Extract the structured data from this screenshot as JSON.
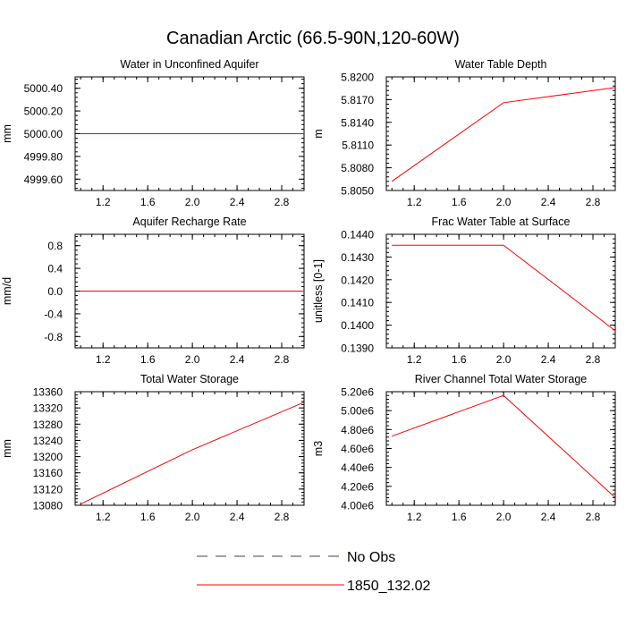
{
  "title": "Canadian Arctic (66.5-90N,120-60W)",
  "chart_data": [
    {
      "type": "line",
      "title": "Water in Unconfined Aquifer",
      "ylabel": "mm",
      "xlim": [
        0.95,
        3.0
      ],
      "ylim": [
        4999.5,
        5000.5
      ],
      "xticks": [
        "1.2",
        "1.6",
        "2.0",
        "2.4",
        "2.8"
      ],
      "xtick_values": [
        1.2,
        1.6,
        2.0,
        2.4,
        2.8
      ],
      "yticks": [
        "5000.40",
        "5000.20",
        "5000.00",
        "4999.80",
        "4999.60"
      ],
      "ytick_values": [
        5000.4,
        5000.2,
        5000.0,
        4999.8,
        4999.6
      ],
      "series": [
        {
          "name": "1850_132.02",
          "color": "#ff0000",
          "x": [
            1.0,
            2.0,
            3.0
          ],
          "y": [
            5000.0,
            5000.0,
            5000.0
          ]
        }
      ]
    },
    {
      "type": "line",
      "title": "Water Table Depth",
      "ylabel": "m",
      "xlim": [
        0.95,
        3.0
      ],
      "ylim": [
        5.805,
        5.82
      ],
      "xticks": [
        "1.2",
        "1.6",
        "2.0",
        "2.4",
        "2.8"
      ],
      "xtick_values": [
        1.2,
        1.6,
        2.0,
        2.4,
        2.8
      ],
      "yticks": [
        "5.8200",
        "5.8170",
        "5.8140",
        "5.8110",
        "5.8080",
        "5.8050"
      ],
      "ytick_values": [
        5.82,
        5.817,
        5.814,
        5.811,
        5.808,
        5.805
      ],
      "series": [
        {
          "name": "1850_132.02",
          "color": "#ff0000",
          "x": [
            1.0,
            2.0,
            3.0
          ],
          "y": [
            5.8062,
            5.8166,
            5.8186
          ]
        }
      ]
    },
    {
      "type": "line",
      "title": "Aquifer Recharge Rate",
      "ylabel": "mm/d",
      "xlim": [
        0.95,
        3.0
      ],
      "ylim": [
        -1.0,
        1.0
      ],
      "xticks": [
        "1.2",
        "1.6",
        "2.0",
        "2.4",
        "2.8"
      ],
      "xtick_values": [
        1.2,
        1.6,
        2.0,
        2.4,
        2.8
      ],
      "yticks": [
        "0.8",
        "0.4",
        "0.0",
        "-0.4",
        "-0.8"
      ],
      "ytick_values": [
        0.8,
        0.4,
        0.0,
        -0.4,
        -0.8
      ],
      "series": [
        {
          "name": "1850_132.02",
          "color": "#ff0000",
          "x": [
            1.0,
            2.0,
            3.0
          ],
          "y": [
            0.0,
            0.0,
            0.0
          ]
        }
      ]
    },
    {
      "type": "line",
      "title": "Frac Water Table at Surface",
      "ylabel": "unitless [0-1]",
      "xlim": [
        0.95,
        3.0
      ],
      "ylim": [
        0.139,
        0.144
      ],
      "xticks": [
        "1.2",
        "1.6",
        "2.0",
        "2.4",
        "2.8"
      ],
      "xtick_values": [
        1.2,
        1.6,
        2.0,
        2.4,
        2.8
      ],
      "yticks": [
        "0.1440",
        "0.1430",
        "0.1420",
        "0.1410",
        "0.1400",
        "0.1390"
      ],
      "ytick_values": [
        0.144,
        0.143,
        0.142,
        0.141,
        0.14,
        0.139
      ],
      "series": [
        {
          "name": "1850_132.02",
          "color": "#ff0000",
          "x": [
            1.0,
            2.0,
            3.0
          ],
          "y": [
            0.14352,
            0.14352,
            0.13975
          ]
        }
      ]
    },
    {
      "type": "line",
      "title": "Total Water Storage",
      "ylabel": "mm",
      "xlim": [
        0.95,
        3.0
      ],
      "ylim": [
        13080,
        13360
      ],
      "xticks": [
        "1.2",
        "1.6",
        "2.0",
        "2.4",
        "2.8"
      ],
      "xtick_values": [
        1.2,
        1.6,
        2.0,
        2.4,
        2.8
      ],
      "yticks": [
        "13360",
        "13320",
        "13280",
        "13240",
        "13200",
        "13160",
        "13120",
        "13080"
      ],
      "ytick_values": [
        13360,
        13320,
        13280,
        13240,
        13200,
        13160,
        13120,
        13080
      ],
      "series": [
        {
          "name": "1850_132.02",
          "color": "#ff0000",
          "x": [
            1.0,
            2.0,
            3.0
          ],
          "y": [
            13083,
            13217,
            13334
          ]
        }
      ]
    },
    {
      "type": "line",
      "title": "River Channel Total Water Storage",
      "ylabel": "m3",
      "xlim": [
        0.95,
        3.0
      ],
      "ylim": [
        4000000,
        5200000
      ],
      "xticks": [
        "1.2",
        "1.6",
        "2.0",
        "2.4",
        "2.8"
      ],
      "xtick_values": [
        1.2,
        1.6,
        2.0,
        2.4,
        2.8
      ],
      "yticks": [
        "5.20e6",
        "5.00e6",
        "4.80e6",
        "4.60e6",
        "4.40e6",
        "4.20e6",
        "4.00e6"
      ],
      "ytick_values": [
        5200000,
        5000000,
        4800000,
        4600000,
        4400000,
        4200000,
        4000000
      ],
      "series": [
        {
          "name": "1850_132.02",
          "color": "#ff0000",
          "x": [
            1.0,
            2.0,
            3.0
          ],
          "y": [
            4730000,
            5160000,
            4080000
          ]
        }
      ]
    }
  ],
  "legend": [
    {
      "label": "No Obs",
      "color": "#3c3c6e",
      "dash": "dashed"
    },
    {
      "label": "1850_132.02",
      "color": "#ff0000",
      "dash": "solid"
    }
  ]
}
